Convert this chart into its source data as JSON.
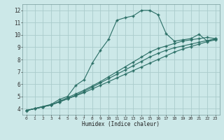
{
  "xlabel": "Humidex (Indice chaleur)",
  "bg_color": "#cce8e8",
  "grid_color": "#aacccc",
  "line_color": "#2a6e65",
  "xlim": [
    -0.5,
    23.5
  ],
  "ylim": [
    3.5,
    12.5
  ],
  "xticks": [
    0,
    1,
    2,
    3,
    4,
    5,
    6,
    7,
    8,
    9,
    10,
    11,
    12,
    13,
    14,
    15,
    16,
    17,
    18,
    19,
    20,
    21,
    22,
    23
  ],
  "yticks": [
    4,
    5,
    6,
    7,
    8,
    9,
    10,
    11,
    12
  ],
  "line1_x": [
    0,
    1,
    2,
    3,
    4,
    5,
    6,
    7,
    8,
    9,
    10,
    11,
    12,
    13,
    14,
    15,
    16,
    17,
    18,
    19,
    20,
    21,
    22,
    23
  ],
  "line1_y": [
    3.85,
    4.0,
    4.15,
    4.3,
    4.55,
    4.8,
    5.05,
    5.3,
    5.6,
    5.9,
    6.2,
    6.5,
    6.8,
    7.1,
    7.4,
    7.7,
    8.0,
    8.3,
    8.6,
    8.85,
    9.05,
    9.25,
    9.45,
    9.6
  ],
  "line2_x": [
    0,
    1,
    2,
    3,
    4,
    5,
    6,
    7,
    8,
    9,
    10,
    11,
    12,
    13,
    14,
    15,
    16,
    17,
    18,
    19,
    20,
    21,
    22,
    23
  ],
  "line2_y": [
    3.85,
    4.0,
    4.15,
    4.3,
    4.55,
    4.8,
    5.1,
    5.4,
    5.75,
    6.1,
    6.45,
    6.8,
    7.15,
    7.5,
    7.85,
    8.2,
    8.5,
    8.75,
    8.95,
    9.1,
    9.25,
    9.4,
    9.55,
    9.65
  ],
  "line3_x": [
    0,
    1,
    2,
    3,
    4,
    5,
    6,
    7,
    8,
    9,
    10,
    11,
    12,
    13,
    14,
    15,
    16,
    17,
    18,
    19,
    20,
    21,
    22,
    23
  ],
  "line3_y": [
    3.85,
    4.0,
    4.15,
    4.3,
    4.6,
    4.9,
    5.2,
    5.5,
    5.85,
    6.2,
    6.6,
    7.0,
    7.4,
    7.8,
    8.2,
    8.6,
    8.9,
    9.1,
    9.3,
    9.5,
    9.6,
    9.7,
    9.8,
    9.7
  ],
  "line4_x": [
    0,
    3,
    4,
    5,
    6,
    7,
    8,
    9,
    10,
    11,
    12,
    13,
    14,
    15,
    16,
    17,
    18,
    19,
    20,
    21,
    22,
    23
  ],
  "line4_y": [
    3.85,
    4.35,
    4.75,
    5.0,
    5.9,
    6.35,
    7.7,
    8.75,
    9.65,
    11.2,
    11.4,
    11.55,
    12.0,
    12.0,
    11.65,
    10.1,
    9.5,
    9.6,
    9.7,
    10.05,
    9.5,
    9.7
  ]
}
